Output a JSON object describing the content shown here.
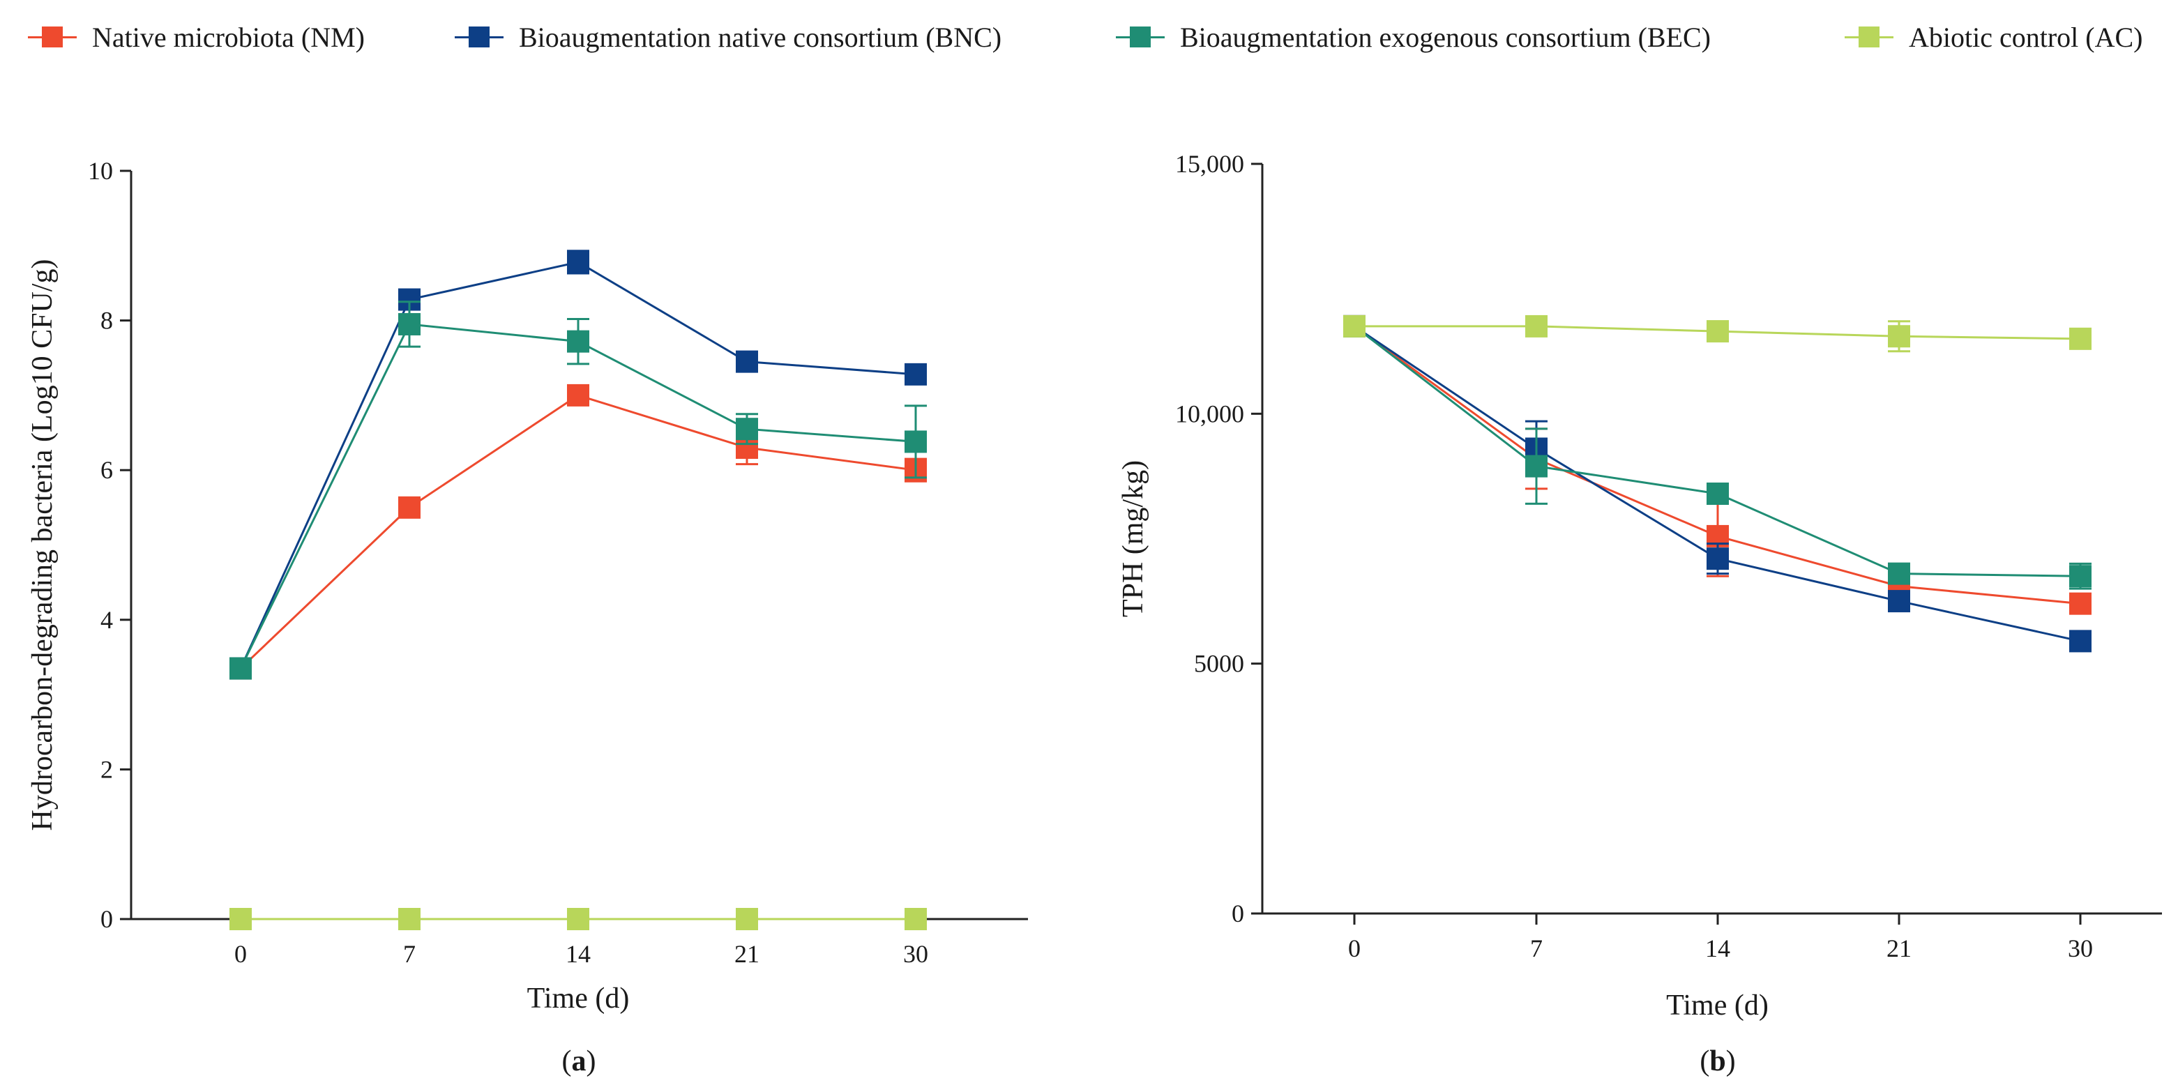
{
  "legend": [
    {
      "label": "Native microbiota (NM)",
      "color": "#ee4a2e"
    },
    {
      "label": "Bioaugmentation native consortium (BNC)",
      "color": "#0d3f86"
    },
    {
      "label": "Bioaugmentation exogenous consortium (BEC)",
      "color": "#1f8d74"
    },
    {
      "label": "Abiotic control (AC)",
      "color": "#b8d65a"
    }
  ],
  "chart_data": [
    {
      "type": "line",
      "panel_label": "(a)",
      "panel_letter": "a",
      "xlabel": "Time (d)",
      "ylabel": "Hydrocarbon-degrading bacteria (Log10 CFU/g)",
      "categories": [
        "0",
        "7",
        "14",
        "21",
        "30"
      ],
      "ylim": [
        0,
        10
      ],
      "yticks": [
        0,
        2,
        4,
        6,
        8,
        10
      ],
      "ytick_labels": [
        "0",
        "2",
        "4",
        "6",
        "8",
        "10"
      ],
      "series": [
        {
          "name": "Native microbiota (NM)",
          "color": "#ee4a2e",
          "values": [
            3.35,
            5.5,
            7.0,
            6.3,
            6.0
          ],
          "errors": [
            0.05,
            0.05,
            0.1,
            0.22,
            0.15
          ]
        },
        {
          "name": "Bioaugmentation native consortium (BNC)",
          "color": "#0d3f86",
          "values": [
            3.35,
            8.28,
            8.78,
            7.45,
            7.28
          ],
          "errors": [
            0.05,
            0.08,
            0.15,
            0.05,
            0.05
          ]
        },
        {
          "name": "Bioaugmentation exogenous consortium (BEC)",
          "color": "#1f8d74",
          "values": [
            3.35,
            7.95,
            7.72,
            6.55,
            6.38
          ],
          "errors": [
            0.05,
            0.3,
            0.3,
            0.2,
            0.48
          ]
        },
        {
          "name": "Abiotic control (AC)",
          "color": "#b8d65a",
          "values": [
            0,
            0,
            0,
            0,
            0
          ],
          "errors": [
            0,
            0,
            0,
            0,
            0
          ]
        }
      ]
    },
    {
      "type": "line",
      "panel_label": "(b)",
      "panel_letter": "b",
      "xlabel": "Time (d)",
      "ylabel": "TPH (mg/kg)",
      "categories": [
        "0",
        "7",
        "14",
        "21",
        "30"
      ],
      "ylim": [
        0,
        15000
      ],
      "yticks": [
        0,
        5000,
        10000,
        15000
      ],
      "ytick_labels": [
        "0",
        "5000",
        "10,000",
        "15,000"
      ],
      "series": [
        {
          "name": "Native microbiota (NM)",
          "color": "#ee4a2e",
          "values": [
            11750,
            9100,
            7550,
            6550,
            6200
          ],
          "errors": [
            0,
            600,
            800,
            250,
            150
          ]
        },
        {
          "name": "Bioaugmentation native consortium (BNC)",
          "color": "#0d3f86",
          "values": [
            11750,
            9300,
            7100,
            6250,
            5450
          ],
          "errors": [
            0,
            550,
            300,
            150,
            100
          ]
        },
        {
          "name": "Bioaugmentation exogenous consortium (BEC)",
          "color": "#1f8d74",
          "values": [
            11750,
            8950,
            8400,
            6800,
            6750
          ],
          "errors": [
            0,
            750,
            200,
            150,
            250
          ]
        },
        {
          "name": "Abiotic control (AC)",
          "color": "#b8d65a",
          "values": [
            11750,
            11750,
            11650,
            11550,
            11500
          ],
          "errors": [
            0,
            100,
            120,
            300,
            150
          ]
        }
      ]
    }
  ]
}
